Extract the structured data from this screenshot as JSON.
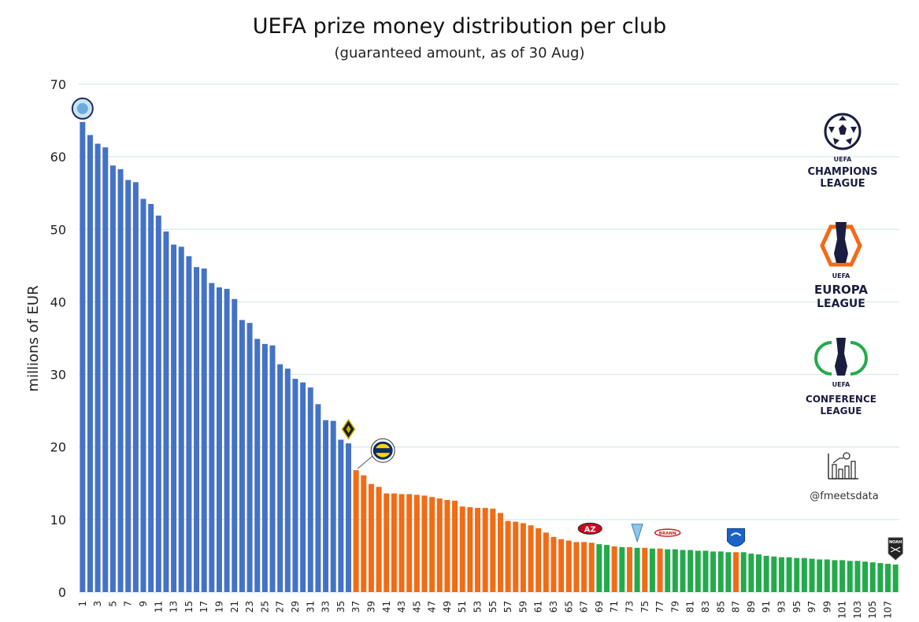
{
  "chart_data": {
    "type": "bar",
    "title": "UEFA prize money distribution per club",
    "subtitle": "(guaranteed amount, as of 30 Aug)",
    "ylabel": "millions of EUR",
    "xlabel": "",
    "ylim": [
      0,
      70
    ],
    "yticks": [
      0,
      10,
      20,
      30,
      40,
      50,
      60,
      70
    ],
    "grid": true,
    "x_tick_labels": [
      "1",
      "3",
      "5",
      "7",
      "9",
      "11",
      "13",
      "15",
      "17",
      "19",
      "21",
      "23",
      "25",
      "27",
      "29",
      "31",
      "33",
      "35",
      "37",
      "39",
      "41",
      "43",
      "45",
      "47",
      "49",
      "51",
      "53",
      "55",
      "57",
      "59",
      "61",
      "63",
      "65",
      "67",
      "69",
      "71",
      "73",
      "75",
      "77",
      "79",
      "81",
      "83",
      "85",
      "87",
      "89",
      "91",
      "93",
      "95",
      "97",
      "99",
      "101",
      "103",
      "105",
      "107"
    ],
    "categories": [
      "1",
      "2",
      "3",
      "4",
      "5",
      "6",
      "7",
      "8",
      "9",
      "10",
      "11",
      "12",
      "13",
      "14",
      "15",
      "16",
      "17",
      "18",
      "19",
      "20",
      "21",
      "22",
      "23",
      "24",
      "25",
      "26",
      "27",
      "28",
      "29",
      "30",
      "31",
      "32",
      "33",
      "34",
      "35",
      "36",
      "37",
      "38",
      "39",
      "40",
      "41",
      "42",
      "43",
      "44",
      "45",
      "46",
      "47",
      "48",
      "49",
      "50",
      "51",
      "52",
      "53",
      "54",
      "55",
      "56",
      "57",
      "58",
      "59",
      "60",
      "61",
      "62",
      "63",
      "64",
      "65",
      "66",
      "67",
      "68",
      "69",
      "70",
      "71",
      "72",
      "73",
      "74",
      "75",
      "76",
      "77",
      "78",
      "79",
      "80",
      "81",
      "82",
      "83",
      "84",
      "85",
      "86",
      "87",
      "88",
      "89",
      "90",
      "91",
      "92",
      "93",
      "94",
      "95",
      "96",
      "97",
      "98",
      "99",
      "100",
      "101",
      "102",
      "103",
      "104",
      "105",
      "106",
      "107",
      "108"
    ],
    "values": [
      64.8,
      63.0,
      61.8,
      61.3,
      58.8,
      58.3,
      56.8,
      56.5,
      54.2,
      53.5,
      51.9,
      49.7,
      47.9,
      47.6,
      46.3,
      44.8,
      44.6,
      42.6,
      42.0,
      41.8,
      40.4,
      37.5,
      37.1,
      34.9,
      34.2,
      34.0,
      31.4,
      30.8,
      29.4,
      28.9,
      28.2,
      25.9,
      23.7,
      23.6,
      21.0,
      20.5,
      16.8,
      16.1,
      14.9,
      14.5,
      13.6,
      13.6,
      13.5,
      13.5,
      13.4,
      13.3,
      13.1,
      12.9,
      12.7,
      12.6,
      11.8,
      11.7,
      11.6,
      11.6,
      11.5,
      10.9,
      9.8,
      9.7,
      9.5,
      9.2,
      8.8,
      8.2,
      7.6,
      7.3,
      7.1,
      6.9,
      6.9,
      6.8,
      6.6,
      6.5,
      6.3,
      6.2,
      6.2,
      6.1,
      6.1,
      6.0,
      6.0,
      5.9,
      5.9,
      5.8,
      5.8,
      5.7,
      5.7,
      5.6,
      5.6,
      5.5,
      5.5,
      5.5,
      5.3,
      5.2,
      5.0,
      4.9,
      4.8,
      4.8,
      4.7,
      4.7,
      4.6,
      4.5,
      4.5,
      4.4,
      4.4,
      4.3,
      4.3,
      4.2,
      4.1,
      4.0,
      3.9,
      3.8
    ],
    "competition": [
      "UCL",
      "UCL",
      "UCL",
      "UCL",
      "UCL",
      "UCL",
      "UCL",
      "UCL",
      "UCL",
      "UCL",
      "UCL",
      "UCL",
      "UCL",
      "UCL",
      "UCL",
      "UCL",
      "UCL",
      "UCL",
      "UCL",
      "UCL",
      "UCL",
      "UCL",
      "UCL",
      "UCL",
      "UCL",
      "UCL",
      "UCL",
      "UCL",
      "UCL",
      "UCL",
      "UCL",
      "UCL",
      "UCL",
      "UCL",
      "UCL",
      "UCL",
      "UEL",
      "UEL",
      "UEL",
      "UEL",
      "UEL",
      "UEL",
      "UEL",
      "UEL",
      "UEL",
      "UEL",
      "UEL",
      "UEL",
      "UEL",
      "UEL",
      "UEL",
      "UEL",
      "UEL",
      "UEL",
      "UEL",
      "UEL",
      "UEL",
      "UEL",
      "UEL",
      "UEL",
      "UEL",
      "UEL",
      "UEL",
      "UEL",
      "UEL",
      "UEL",
      "UEL",
      "UEL",
      "UECL",
      "UECL",
      "UEL",
      "UECL",
      "UEL",
      "UECL",
      "UEL",
      "UECL",
      "UEL",
      "UECL",
      "UECL",
      "UECL",
      "UECL",
      "UECL",
      "UECL",
      "UECL",
      "UECL",
      "UECL",
      "UEL",
      "UECL",
      "UECL",
      "UECL",
      "UECL",
      "UECL",
      "UECL",
      "UECL",
      "UECL",
      "UECL",
      "UECL",
      "UECL",
      "UECL",
      "UECL",
      "UECL",
      "UECL",
      "UECL",
      "UECL",
      "UECL",
      "UECL",
      "UECL",
      "UECL"
    ],
    "colors": {
      "UCL": "#4472c4",
      "UEL": "#f26b15",
      "UECL": "#22aa4b",
      "grid": "#d6eaea"
    },
    "legend": [
      {
        "key": "UCL",
        "lines": [
          "UEFA",
          "CHAMPIONS",
          "LEAGUE"
        ],
        "icon": "champions-league-starball-icon"
      },
      {
        "key": "UEL",
        "lines": [
          "UEFA",
          "EUROPA",
          "LEAGUE"
        ],
        "icon": "europa-league-trophy-icon"
      },
      {
        "key": "UECL",
        "lines": [
          "UEFA",
          "CONFERENCE",
          "LEAGUE"
        ],
        "icon": "conference-league-trophy-icon"
      }
    ],
    "legend_placement": "right",
    "club_markers": [
      {
        "index": 1,
        "icon": "man-city-crest-icon"
      },
      {
        "index": 36,
        "icon": "sturm-graz-crest-icon"
      },
      {
        "index": 37,
        "icon": "fenerbahce-crest-icon"
      },
      {
        "index": 68,
        "label": "AZ",
        "icon": "az-alkmaar-crest-icon"
      },
      {
        "index": 74,
        "icon": "malmo-crest-icon"
      },
      {
        "index": 78,
        "label": "BRANN",
        "icon": "brann-crest-icon"
      },
      {
        "index": 87,
        "icon": "genk-crest-icon"
      },
      {
        "index": 108,
        "label": "NOAH",
        "icon": "noah-crest-icon"
      }
    ],
    "branding": {
      "handle": "@fmeetsdata",
      "icon": "bar-chart-football-icon"
    }
  }
}
